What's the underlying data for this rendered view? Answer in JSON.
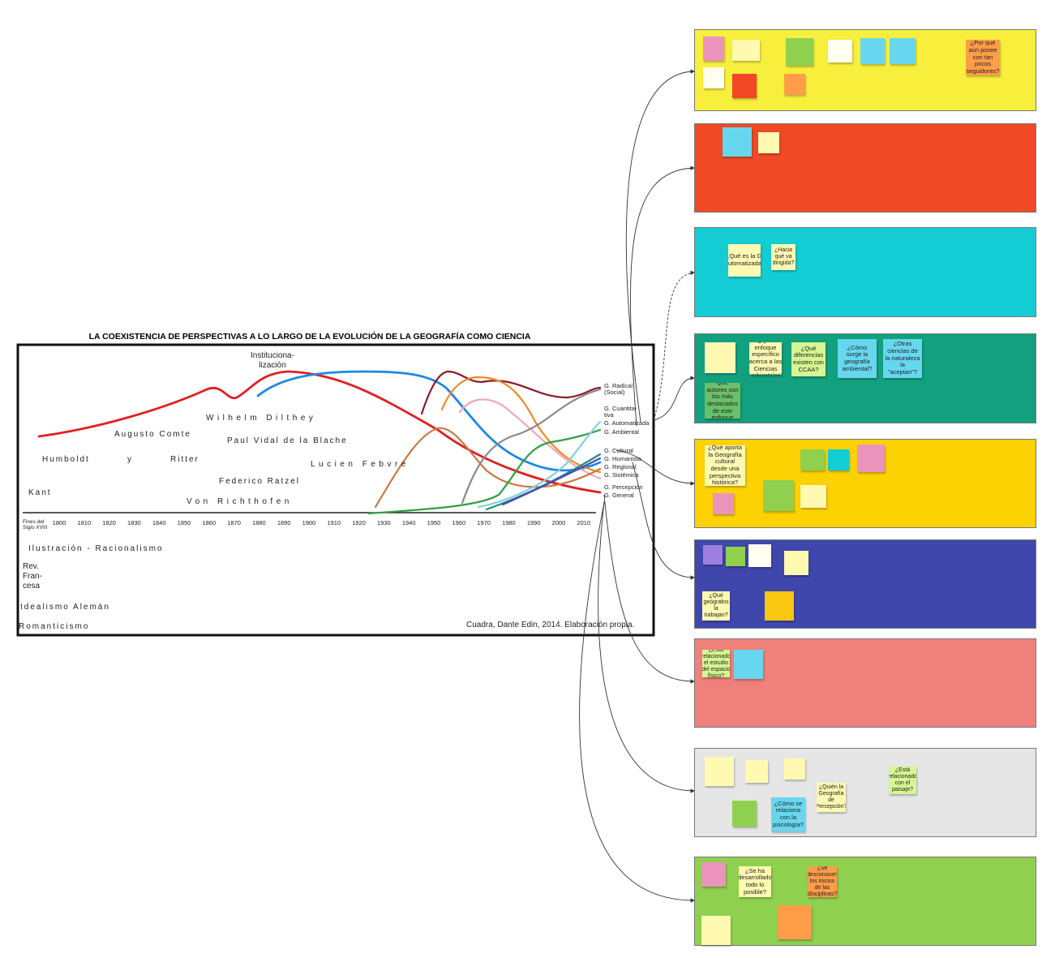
{
  "chart_image": {
    "title": "LA COEXISTENCIA DE PERSPECTIVAS A LO LARGO DE LA EVOLUCIÓN DE LA GEOGRAFÍA COMO CIENCIA",
    "milestone": [
      "Instituciona-",
      "lización"
    ],
    "first_year": [
      "Fines del",
      "Siglo XVIII"
    ],
    "years": [
      "1800",
      "1810",
      "1820",
      "1830",
      "1840",
      "1850",
      "1860",
      "1870",
      "1880",
      "1890",
      "1900",
      "1910",
      "1920",
      "1930",
      "1940",
      "1950",
      "1960",
      "1970",
      "1980",
      "1990",
      "2000",
      "2010"
    ],
    "thinkers": [
      "Humboldt",
      "y",
      "Ritter",
      "Kant",
      "Augusto Comte",
      "Wilhelm Dilthey",
      "Paul Vidal de la Blache",
      "Federico Ratzel",
      "Von Richthofen",
      "Lucien Febvre"
    ],
    "series_labels": [
      "G. Radical",
      "(Social)",
      "G. Cuantita-",
      "tiva",
      "G. Automatizada",
      "G. Ambiental",
      "G. Cultural",
      "G. Humanista",
      "G. Regional",
      "G. Sistémica",
      "G. Percepción",
      "G. General"
    ],
    "periods": [
      "Ilustración - Racionalismo",
      "Rev.",
      "Fran-",
      "cesa",
      "Idealismo Alemán",
      "Romanticismo"
    ],
    "credit": "Cuadra, Dante Edin, 2014. Elaboración propia."
  },
  "frames": [
    {
      "notes": [
        {
          "text": "¿Por qué aún posee con tan pocos seguidores?"
        }
      ]
    },
    {
      "notes": []
    },
    {
      "notes": [
        {
          "text": "¿Qué es la G. Automatizada?"
        },
        {
          "text": "¿Hacia qué va dirigida?"
        }
      ]
    },
    {
      "notes": [
        {
          "text": "¿Qué enfoque específico acerca a las Ciencias Ambientales?"
        },
        {
          "text": "¿Qué diferencias existen con CCAA?"
        },
        {
          "text": "¿Cómo surge la geografía ambiental?"
        },
        {
          "text": "¿Otras ciencias de la naturaleza la \"aceptan\"?"
        },
        {
          "text": "Qué autores son los más destacados de este enfoque"
        }
      ]
    },
    {
      "notes": [
        {
          "text": "¿Qué aporta la Geografía cultural desde una perspectiva histórica?"
        }
      ]
    },
    {
      "notes": [
        {
          "text": "¿Qué geógrafos la trabajan?"
        }
      ]
    },
    {
      "notes": [
        {
          "text": "¿Está relacionado el estudio del espacio físico?"
        }
      ]
    },
    {
      "notes": [
        {
          "text": "¿Quién la Geografía de Percepción?"
        },
        {
          "text": "¿Cómo se relaciona con la psicología?"
        },
        {
          "text": "¿Está relacionado con el paisaje?"
        }
      ]
    },
    {
      "notes": [
        {
          "text": "¿Se ha desarrollado todo lo posible?"
        },
        {
          "text": "¿Se desconocen los inicios de las disciplinas?"
        }
      ]
    }
  ]
}
